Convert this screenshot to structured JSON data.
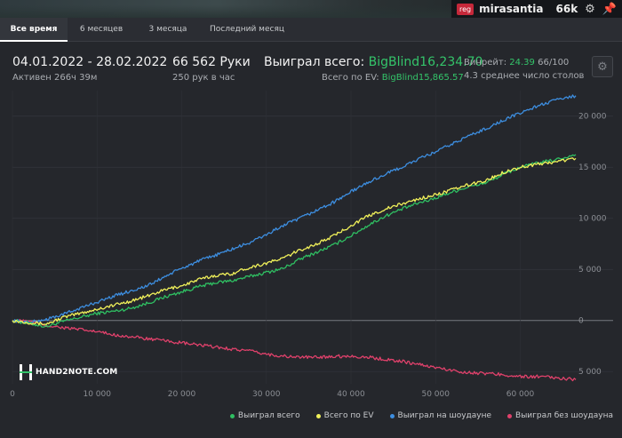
{
  "header": {
    "reg_badge": "reg",
    "username": "mirasantia",
    "stack": "66k",
    "gear_icon": "gear-icon",
    "pin_icon": "pin-icon"
  },
  "tabs": [
    {
      "label": "Все время",
      "active": true
    },
    {
      "label": "6 месяцев",
      "active": false
    },
    {
      "label": "3 месяца",
      "active": false
    },
    {
      "label": "Последний месяц",
      "active": false
    }
  ],
  "stats": {
    "date_range": "04.01.2022 - 28.02.2022",
    "active_time": "Активен 266ч 39м",
    "hands": "66 562 Руки",
    "hands_per_hour": "250 рук в час",
    "won_total_label": "Выиграл всего:",
    "won_total_value": "BigBlind16,234.70",
    "ev_label": "Всего по EV:",
    "ev_value": "BigBlind15,865.57",
    "winrate_label": "Винрейт:",
    "winrate_value": "24.39",
    "winrate_extra": "66/100",
    "tables": "4.3 среднее число столов"
  },
  "logo_text": "HAND2NOTE.COM",
  "colors": {
    "won": "#2fbf62",
    "ev": "#f1f15a",
    "showdown": "#3d8ee0",
    "non_showdown": "#e0416b",
    "accent_green": "#34c46a"
  },
  "chart_data": {
    "type": "line",
    "title": "",
    "xlabel": "",
    "ylabel": "",
    "xlim": [
      0,
      66562
    ],
    "ylim": [
      -6200,
      22500
    ],
    "x_ticks": [
      0,
      10000,
      20000,
      30000,
      40000,
      50000,
      60000
    ],
    "x_tick_labels": [
      "0",
      "10 000",
      "20 000",
      "30 000",
      "40 000",
      "50 000",
      "60 000"
    ],
    "y_ticks": [
      -5000,
      0,
      5000,
      10000,
      15000,
      20000
    ],
    "y_tick_labels": [
      "5 000",
      "0",
      "5 000",
      "10 000",
      "15 000",
      "20 000"
    ],
    "grid": true,
    "legend_position": "bottom-right",
    "x": [
      0,
      2000,
      4000,
      6000,
      8000,
      10000,
      12000,
      14000,
      16000,
      18000,
      20000,
      22000,
      24000,
      26000,
      28000,
      30000,
      32000,
      34000,
      36000,
      38000,
      40000,
      42000,
      44000,
      46000,
      48000,
      50000,
      52000,
      54000,
      56000,
      58000,
      60000,
      62000,
      64000,
      66562
    ],
    "series": [
      {
        "name": "Выиграл всего",
        "color": "#2fbf62",
        "values": [
          0,
          -300,
          -600,
          -100,
          300,
          700,
          900,
          1200,
          1700,
          2300,
          2800,
          3300,
          3700,
          3900,
          4300,
          4700,
          5100,
          6000,
          6700,
          7400,
          8300,
          9300,
          10200,
          10900,
          11500,
          12000,
          12600,
          13100,
          13500,
          14300,
          15000,
          15400,
          15700,
          16234.7
        ]
      },
      {
        "name": "Всего по EV",
        "color": "#f1f15a",
        "values": [
          0,
          -200,
          -350,
          300,
          700,
          1100,
          1500,
          1900,
          2400,
          3000,
          3400,
          4000,
          4400,
          4600,
          5200,
          5600,
          6100,
          6900,
          7500,
          8300,
          9300,
          10200,
          10900,
          11400,
          11900,
          12300,
          12800,
          13300,
          13700,
          14500,
          15000,
          15300,
          15500,
          15865.57
        ]
      },
      {
        "name": "Выиграл на шоудауне",
        "color": "#3d8ee0",
        "values": [
          0,
          -200,
          100,
          600,
          1200,
          1800,
          2400,
          2900,
          3400,
          4300,
          5100,
          5800,
          6400,
          7000,
          7600,
          8400,
          9300,
          10000,
          10800,
          11600,
          12600,
          13500,
          14300,
          15000,
          15800,
          16500,
          17300,
          18100,
          18800,
          19600,
          20300,
          21000,
          21500,
          22000
        ]
      },
      {
        "name": "Выиграл без шоудауна",
        "color": "#e0416b",
        "values": [
          0,
          -100,
          -500,
          -700,
          -900,
          -1100,
          -1400,
          -1600,
          -1800,
          -2000,
          -2200,
          -2400,
          -2600,
          -2800,
          -3000,
          -3300,
          -3500,
          -3600,
          -3600,
          -3500,
          -3500,
          -3600,
          -3800,
          -4000,
          -4300,
          -4600,
          -4900,
          -5100,
          -5200,
          -5300,
          -5500,
          -5500,
          -5600,
          -5800
        ]
      }
    ]
  }
}
